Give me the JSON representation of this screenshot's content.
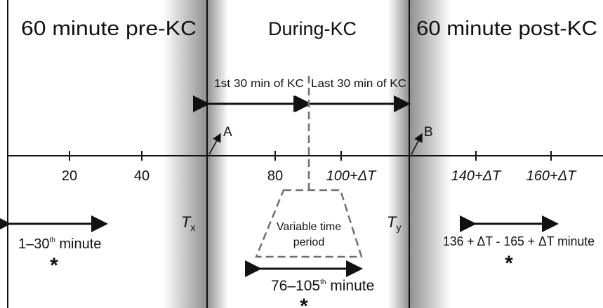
{
  "colors": {
    "ink": "#111111",
    "shadow": "#8a8a8a",
    "dashed": "#6f6f6f",
    "background": "#ffffff"
  },
  "sections": {
    "pre": "60 minute pre-KC",
    "during": "During-KC",
    "post": "60 minute post-KC"
  },
  "sub_periods": {
    "first": "1st 30 min of KC",
    "last": "Last 30 min of KC"
  },
  "points": {
    "a": "A",
    "b": "B"
  },
  "axis_ticks": [
    "20",
    "40",
    "80",
    "100+ΔT",
    "140+ΔT",
    "160+ΔT"
  ],
  "boundaries": {
    "tx_letter": "T",
    "tx_sub": "x",
    "ty_letter": "T",
    "ty_sub": "y"
  },
  "variable_period": {
    "line1": "Variable time",
    "line2": "period"
  },
  "windows": {
    "pre": {
      "start": "1–30",
      "sup": "th",
      "end": " minute",
      "mark": "*"
    },
    "during": {
      "start": "76–105",
      "sup": "th",
      "end": " minute",
      "mark": "*"
    },
    "post": {
      "text": "136 + ΔT - 165 + ΔT minute",
      "mark": "*"
    }
  }
}
